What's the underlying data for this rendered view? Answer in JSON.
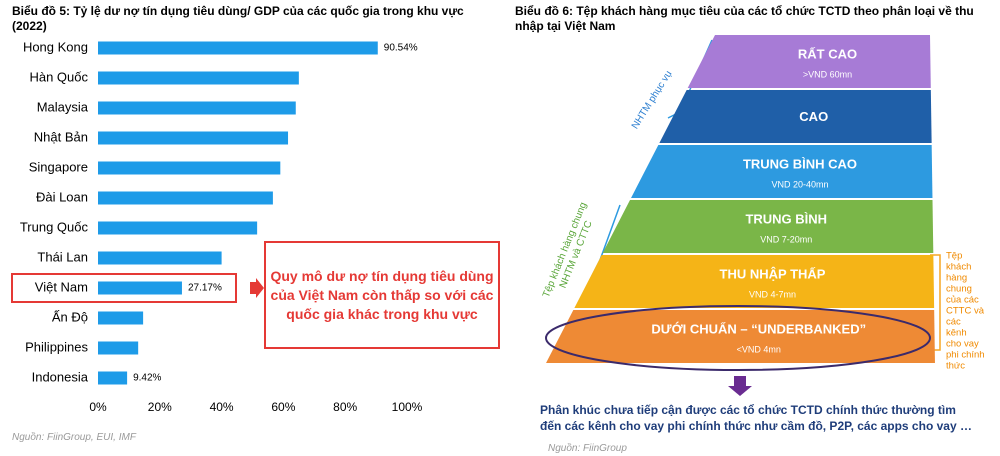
{
  "chart_data": {
    "type": "bar",
    "orientation": "horizontal",
    "title": "Biểu đồ 5: Tỷ lệ dư nợ tín dụng tiêu dùng/ GDP của các quốc gia trong khu vực (2022)",
    "categories": [
      "Hong Kong",
      "Hàn Quốc",
      "Malaysia",
      "Nhật Bản",
      "Singapore",
      "Đài Loan",
      "Trung Quốc",
      "Thái Lan",
      "Việt Nam",
      "Ấn Độ",
      "Philippines",
      "Indonesia"
    ],
    "values": [
      90.54,
      65,
      64,
      61.5,
      59,
      56.6,
      51.5,
      40,
      27.17,
      14.6,
      13,
      9.42
    ],
    "value_labels": [
      "90.54%",
      null,
      null,
      null,
      null,
      null,
      null,
      null,
      "27.17%",
      null,
      null,
      "9.42%"
    ],
    "color": "#1e9be8",
    "xlim": [
      0,
      100
    ],
    "xticks": [
      {
        "value": 0,
        "label": "0%"
      },
      {
        "value": 20,
        "label": "20%"
      },
      {
        "value": 40,
        "label": "40%"
      },
      {
        "value": 60,
        "label": "60%"
      },
      {
        "value": 80,
        "label": "80%"
      },
      {
        "value": 100,
        "label": "100%"
      }
    ],
    "highlight_index": 8,
    "annotation": "Quy mô dư nợ tín dụng tiêu dùng của Việt Nam còn thấp so với các quốc gia khác trong khu vực",
    "source": "Nguồn: FiinGroup, EUI, IMF"
  },
  "diagram": {
    "title": "Biểu đồ 6: Tệp khách hàng mục tiêu của các tổ chức TCTD theo phân loại về thu nhập tại Việt Nam",
    "levels": [
      {
        "label": "RẤT CAO",
        "sublabel": ">VND 60mn",
        "color": "#a77bd6"
      },
      {
        "label": "CAO",
        "sublabel": null,
        "color": "#1f5fa8"
      },
      {
        "label": "TRUNG BÌNH CAO",
        "sublabel": "VND 20-40mn",
        "color": "#2d9ae0"
      },
      {
        "label": "TRUNG BÌNH",
        "sublabel": "VND 7-20mn",
        "color": "#7ab648"
      },
      {
        "label": "THU NHẬP THẤP",
        "sublabel": "VND 4-7mn",
        "color": "#f5b417"
      },
      {
        "label": "DƯỚI CHUẨN – “UNDERBANKED”",
        "sublabel": "<VND 4mn",
        "color": "#ee8a35"
      }
    ],
    "left_brace_top": "NHTM phục vụ",
    "left_brace_bottom": [
      "Tệp khách hàng chung",
      "NHTM và CTTC"
    ],
    "right_brace": [
      "Tệp",
      "khách",
      "hàng",
      "chung",
      "của các",
      "CTTC và",
      "các",
      "kênh",
      "cho vay",
      "phi chính",
      "thức"
    ],
    "note": "Phân khúc chưa tiếp cận được các tổ chức TCTD chính thức thường tìm đến các kênh cho vay phi chính thức như cầm đồ, P2P, các apps cho vay …",
    "source": "Nguồn: FiinGroup"
  }
}
